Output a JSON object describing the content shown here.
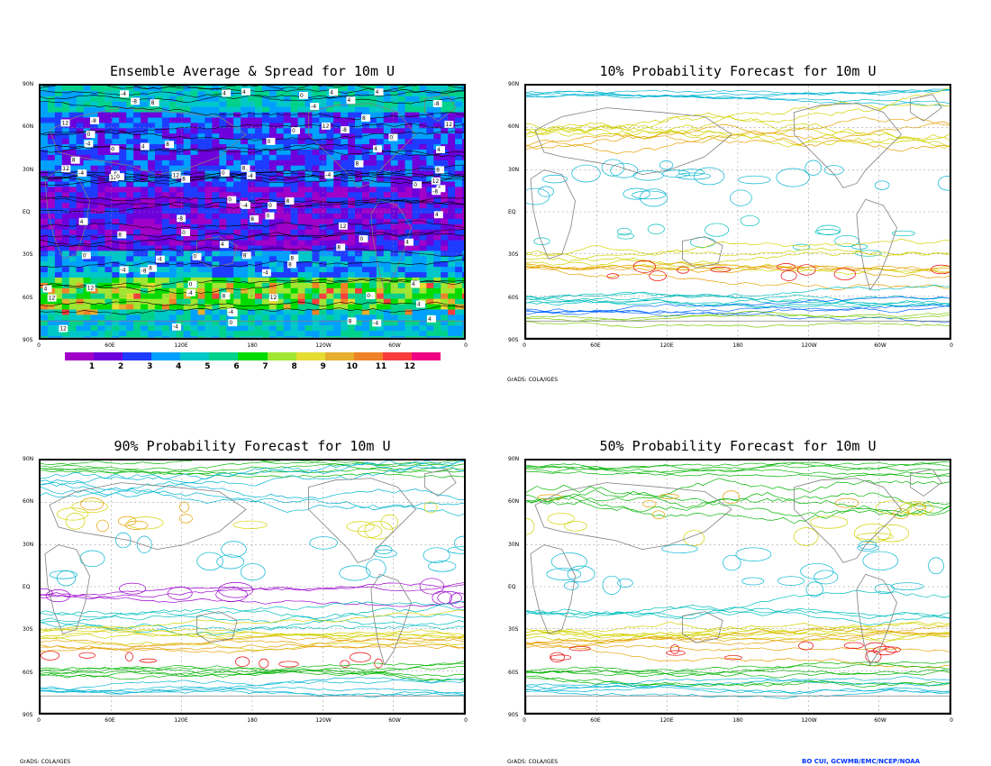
{
  "panels": [
    {
      "id": "p1",
      "title": "Ensemble Average & Spread for 10m U"
    },
    {
      "id": "p2",
      "title": "10% Probability Forecast for 10m U"
    },
    {
      "id": "p3",
      "title": "90% Probability Forecast for 10m U"
    },
    {
      "id": "p4",
      "title": "50% Probability Forecast for 10m U"
    }
  ],
  "lat_labels": [
    "90N",
    "60N",
    "30N",
    "EQ",
    "30S",
    "60S",
    "90S"
  ],
  "lon_labels": [
    "0",
    "60E",
    "120E",
    "180",
    "120W",
    "60W",
    "0"
  ],
  "colorbar": {
    "labels": [
      "1",
      "2",
      "3",
      "4",
      "5",
      "6",
      "7",
      "8",
      "9",
      "10",
      "11",
      "12"
    ],
    "colors": [
      "#a000c8",
      "#6e00dc",
      "#1e3cff",
      "#00a0ff",
      "#00c8c8",
      "#00d28c",
      "#00dc00",
      "#a0e632",
      "#e6dc32",
      "#e6af2d",
      "#f08228",
      "#fa3c3c",
      "#f00082"
    ]
  },
  "credit_text": "GrADS: COLA/IGES",
  "footer_credit": "BO CUI, GCWMB/EMC/NCEP/NOAA",
  "contour_colors": {
    "violet": "#9900cc",
    "blue": "#0066ff",
    "cyan": "#00b4d2",
    "teal": "#00bebe",
    "green": "#00b400",
    "lime": "#78c800",
    "yellow": "#d2d200",
    "orange": "#e6a000",
    "red": "#e60000",
    "coast": "#808080",
    "black": "#000000"
  }
}
